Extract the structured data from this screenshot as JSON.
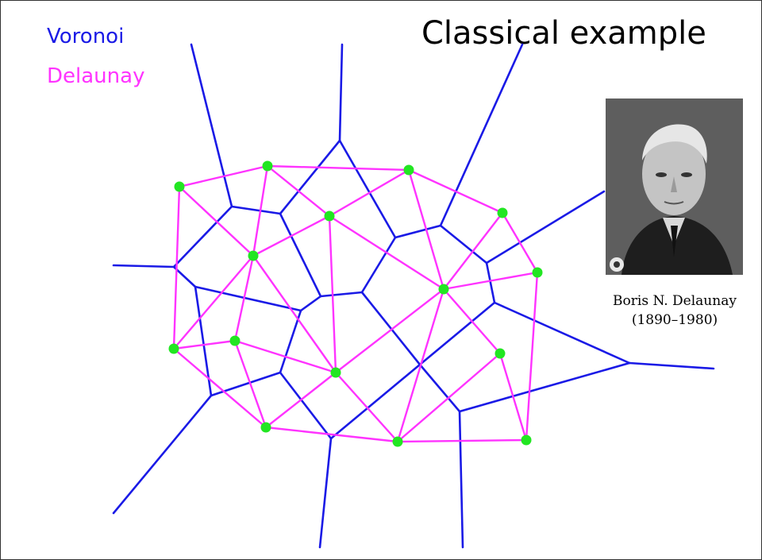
{
  "title": "Classical example",
  "legend": {
    "voronoi_label": "Voronoi",
    "delaunay_label": "Delaunay",
    "voronoi_color": "#1a1ae6",
    "delaunay_color": "#ff33ff",
    "site_color": "#22e622"
  },
  "portrait": {
    "name": "Boris N. Delaunay",
    "years": "(1890–1980)"
  },
  "graph": {
    "sites": [
      [
        225,
        234
      ],
      [
        336,
        208
      ],
      [
        514,
        213
      ],
      [
        632,
        267
      ],
      [
        676,
        342
      ],
      [
        414,
        271
      ],
      [
        318,
        321
      ],
      [
        558,
        363
      ],
      [
        218,
        438
      ],
      [
        295,
        428
      ],
      [
        422,
        468
      ],
      [
        629,
        444
      ],
      [
        334,
        537
      ],
      [
        500,
        555
      ],
      [
        662,
        553
      ]
    ],
    "delaunay_edges": [
      [
        0,
        1
      ],
      [
        1,
        2
      ],
      [
        2,
        3
      ],
      [
        3,
        4
      ],
      [
        4,
        14
      ],
      [
        13,
        14
      ],
      [
        12,
        13
      ],
      [
        8,
        12
      ],
      [
        0,
        8
      ],
      [
        0,
        6
      ],
      [
        1,
        6
      ],
      [
        1,
        5
      ],
      [
        5,
        6
      ],
      [
        5,
        2
      ],
      [
        2,
        7
      ],
      [
        3,
        7
      ],
      [
        4,
        7
      ],
      [
        5,
        7
      ],
      [
        7,
        10
      ],
      [
        5,
        10
      ],
      [
        6,
        10
      ],
      [
        6,
        9
      ],
      [
        6,
        8
      ],
      [
        8,
        9
      ],
      [
        9,
        10
      ],
      [
        9,
        12
      ],
      [
        10,
        12
      ],
      [
        10,
        13
      ],
      [
        7,
        13
      ],
      [
        7,
        11
      ],
      [
        11,
        13
      ],
      [
        11,
        14
      ]
    ],
    "voronoi_edges": [
      [
        [
          240,
          55
        ],
        [
          291,
          259
        ]
      ],
      [
        [
          430,
          55
        ],
        [
          427,
          176
        ]
      ],
      [
        [
          427,
          176
        ],
        [
          352,
          268
        ]
      ],
      [
        [
          427,
          176
        ],
        [
          497,
          298
        ]
      ],
      [
        [
          291,
          259
        ],
        [
          352,
          268
        ]
      ],
      [
        [
          291,
          259
        ],
        [
          218,
          335
        ]
      ],
      [
        [
          142,
          333
        ],
        [
          218,
          335
        ]
      ],
      [
        [
          218,
          335
        ],
        [
          245,
          360
        ]
      ],
      [
        [
          245,
          360
        ],
        [
          378,
          390
        ]
      ],
      [
        [
          352,
          268
        ],
        [
          403,
          372
        ]
      ],
      [
        [
          378,
          390
        ],
        [
          403,
          372
        ]
      ],
      [
        [
          403,
          372
        ],
        [
          455,
          367
        ]
      ],
      [
        [
          455,
          367
        ],
        [
          497,
          298
        ]
      ],
      [
        [
          497,
          298
        ],
        [
          554,
          283
        ]
      ],
      [
        [
          554,
          283
        ],
        [
          657,
          55
        ]
      ],
      [
        [
          554,
          283
        ],
        [
          612,
          330
        ]
      ],
      [
        [
          612,
          330
        ],
        [
          760,
          240
        ]
      ],
      [
        [
          612,
          330
        ],
        [
          622,
          380
        ]
      ],
      [
        [
          622,
          380
        ],
        [
          528,
          458
        ]
      ],
      [
        [
          455,
          367
        ],
        [
          528,
          458
        ]
      ],
      [
        [
          622,
          380
        ],
        [
          792,
          456
        ]
      ],
      [
        [
          792,
          456
        ],
        [
          898,
          463
        ]
      ],
      [
        [
          792,
          456
        ],
        [
          578,
          517
        ]
      ],
      [
        [
          528,
          458
        ],
        [
          578,
          517
        ]
      ],
      [
        [
          578,
          517
        ],
        [
          582,
          688
        ]
      ],
      [
        [
          528,
          458
        ],
        [
          416,
          551
        ]
      ],
      [
        [
          416,
          551
        ],
        [
          352,
          468
        ]
      ],
      [
        [
          378,
          390
        ],
        [
          352,
          468
        ]
      ],
      [
        [
          352,
          468
        ],
        [
          265,
          497
        ]
      ],
      [
        [
          245,
          360
        ],
        [
          265,
          497
        ]
      ],
      [
        [
          265,
          497
        ],
        [
          142,
          645
        ]
      ],
      [
        [
          416,
          551
        ],
        [
          402,
          688
        ]
      ]
    ]
  }
}
